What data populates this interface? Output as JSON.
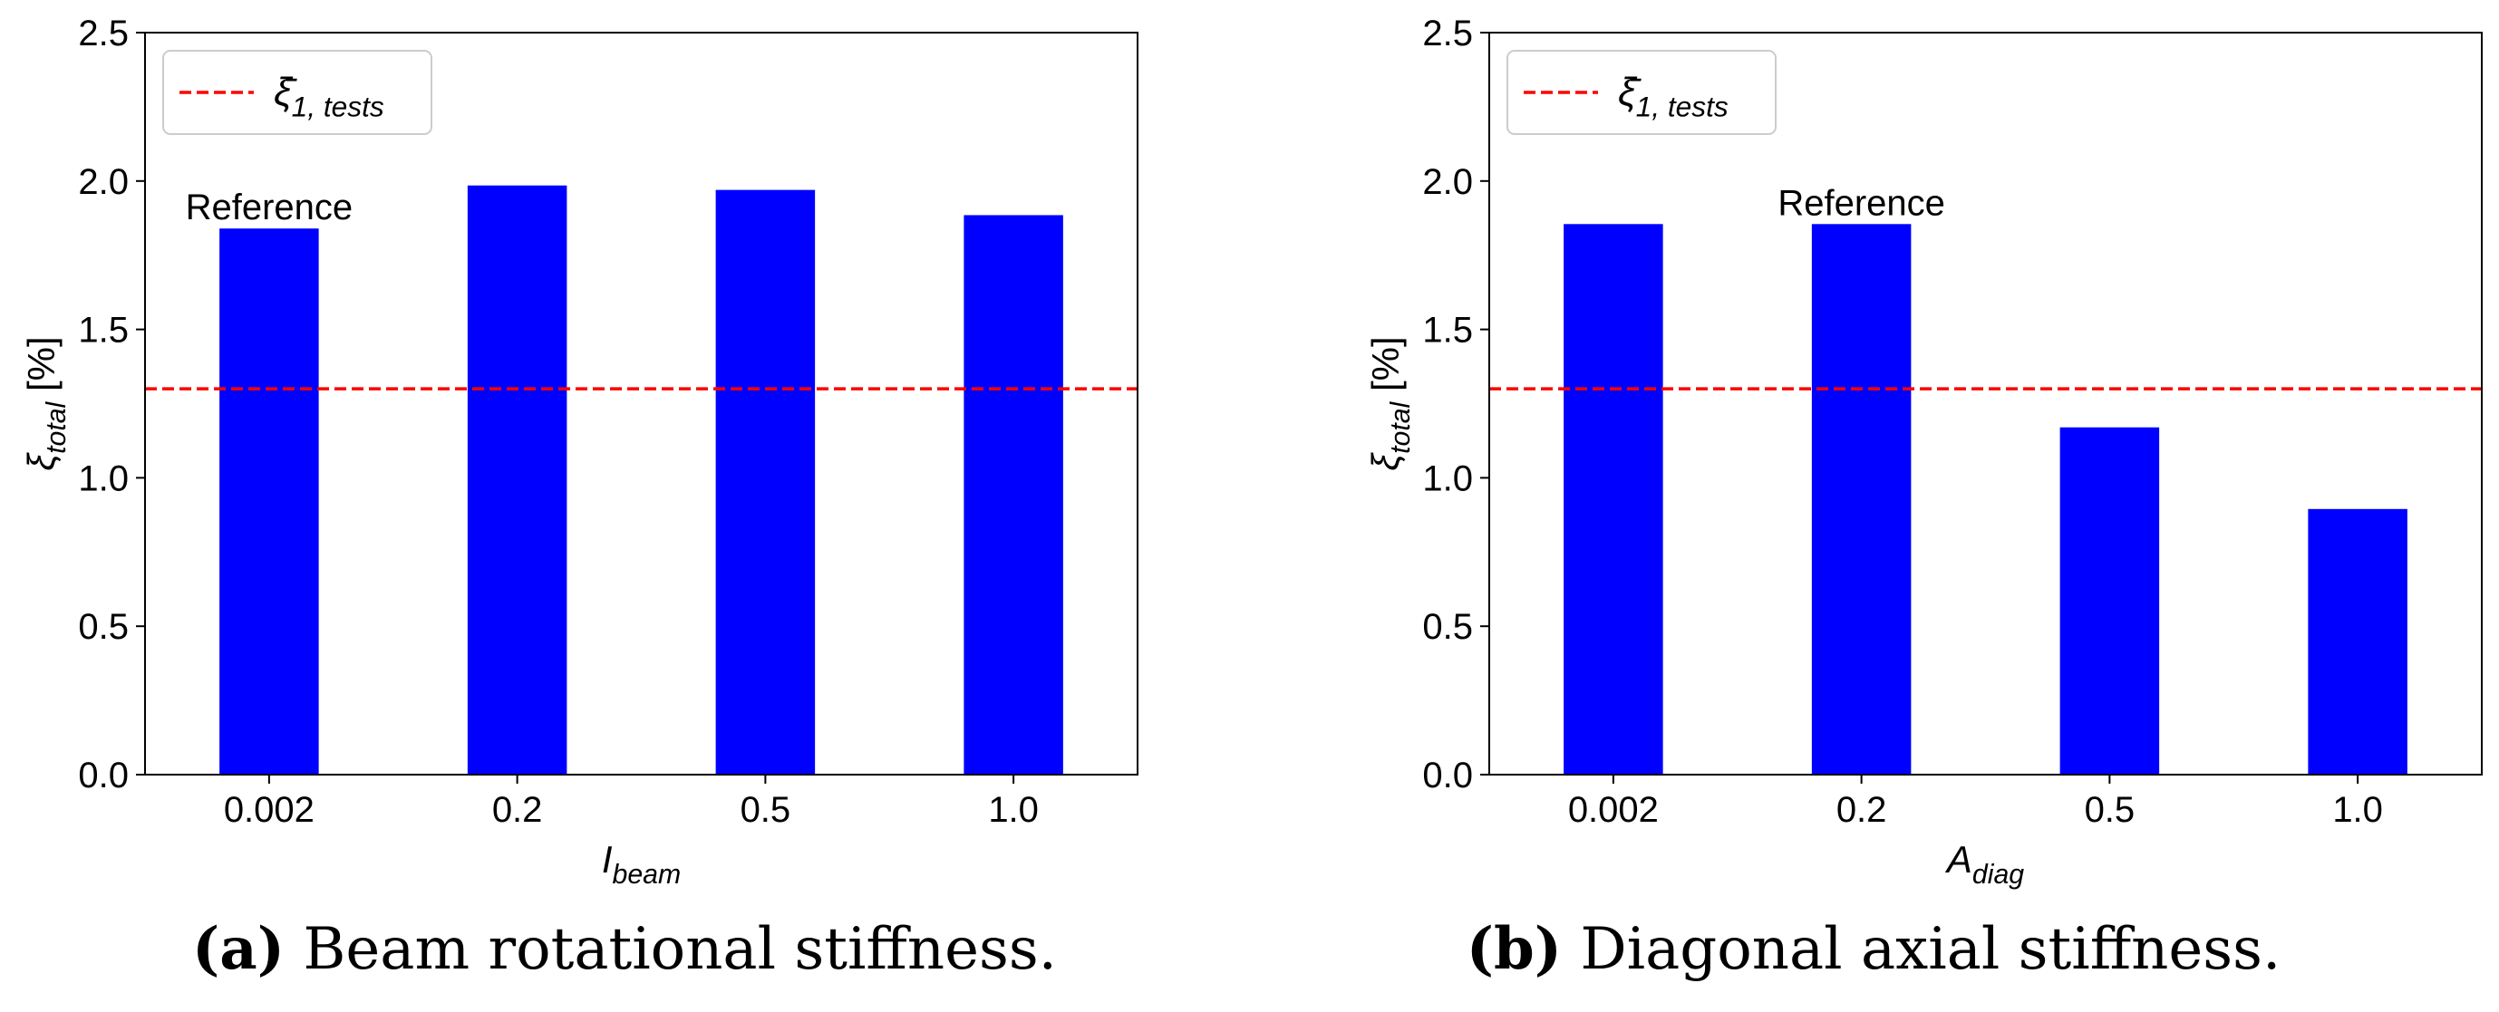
{
  "chart_data": [
    {
      "type": "bar",
      "categories": [
        "0.002",
        "0.2",
        "0.5",
        "1.0"
      ],
      "values": [
        1.84,
        1.985,
        1.97,
        1.885
      ],
      "ylim": [
        0,
        2.5
      ],
      "yticks": [
        "0.0",
        "0.5",
        "1.0",
        "1.5",
        "2.0",
        "2.5"
      ],
      "ylabel": {
        "base": "ξ",
        "sub": "total",
        "unit": " [%]"
      },
      "xlabel": {
        "base": "I",
        "sub": "beam"
      },
      "bar_color": "#0000ff",
      "reference_line": {
        "value": 1.3,
        "color": "#ff0000",
        "legend": {
          "base": "ξ̄",
          "sub": "1, tests"
        }
      },
      "annotation": {
        "text": "Reference",
        "category_index": 0
      },
      "legend_position": "upper-left",
      "caption": {
        "label": "(a)",
        "text": "Beam rotational stiffness."
      }
    },
    {
      "type": "bar",
      "categories": [
        "0.002",
        "0.2",
        "0.5",
        "1.0"
      ],
      "values": [
        1.855,
        1.855,
        1.17,
        0.895
      ],
      "ylim": [
        0,
        2.5
      ],
      "yticks": [
        "0.0",
        "0.5",
        "1.0",
        "1.5",
        "2.0",
        "2.5"
      ],
      "ylabel": {
        "base": "ξ",
        "sub": "total",
        "unit": " [%]"
      },
      "xlabel": {
        "base": "A",
        "sub": "diag"
      },
      "bar_color": "#0000ff",
      "reference_line": {
        "value": 1.3,
        "color": "#ff0000",
        "legend": {
          "base": "ξ̄",
          "sub": "1, tests"
        }
      },
      "annotation": {
        "text": "Reference",
        "category_index": 1
      },
      "legend_position": "upper-left",
      "caption": {
        "label": "(b)",
        "text": "Diagonal axial stiffness."
      }
    }
  ]
}
